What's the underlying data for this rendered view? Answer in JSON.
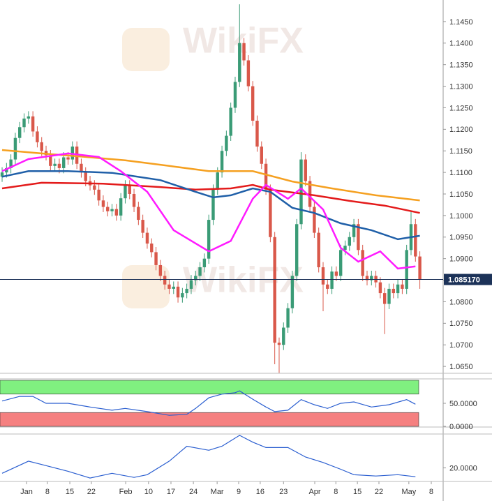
{
  "watermark": "WikiFX",
  "chart_data": [
    {
      "type": "candlestick",
      "up_color": "#3a9b76",
      "down_color": "#d9584a",
      "xlim": [
        -0.48,
        100.3
      ],
      "ylim": [
        1.0634,
        1.15
      ],
      "yticks": [
        {
          "value": 1.065,
          "label": "1.0650"
        },
        {
          "value": 1.07,
          "label": "1.0700"
        },
        {
          "value": 1.075,
          "label": "1.0750"
        },
        {
          "value": 1.08,
          "label": "1.0800"
        },
        {
          "value": 1.085,
          "label": "1.0850"
        },
        {
          "value": 1.09,
          "label": "1.0900"
        },
        {
          "value": 1.095,
          "label": "1.0950"
        },
        {
          "value": 1.1,
          "label": "1.1000"
        },
        {
          "value": 1.105,
          "label": "1.1050"
        },
        {
          "value": 1.11,
          "label": "1.1100"
        },
        {
          "value": 1.115,
          "label": "1.1150"
        },
        {
          "value": 1.12,
          "label": "1.1200"
        },
        {
          "value": 1.125,
          "label": "1.1250"
        },
        {
          "value": 1.13,
          "label": "1.1300"
        },
        {
          "value": 1.135,
          "label": "1.1350"
        },
        {
          "value": 1.14,
          "label": "1.1400"
        },
        {
          "value": 1.145,
          "label": "1.1450"
        }
      ],
      "last_price": {
        "value": 1.08517,
        "label": "1.085170",
        "color": "#1c3258"
      },
      "open": [
        1.109,
        1.11,
        1.111,
        1.113,
        1.118,
        1.1205,
        1.1225,
        1.123,
        1.1195,
        1.117,
        1.115,
        1.114,
        1.1115,
        1.112,
        1.111,
        1.1135,
        1.113,
        1.116,
        1.112,
        1.11,
        1.108,
        1.107,
        1.106,
        1.1035,
        1.102,
        1.101,
        1.1015,
        1.1,
        1.104,
        1.107,
        1.105,
        1.102,
        1.099,
        1.096,
        1.0935,
        1.0915,
        1.0885,
        1.086,
        1.084,
        1.083,
        1.0835,
        1.081,
        1.082,
        1.083,
        1.085,
        1.086,
        1.088,
        1.09,
        1.099,
        1.106,
        1.11,
        1.115,
        1.1185,
        1.125,
        1.131,
        1.14,
        1.136,
        1.13,
        1.122,
        1.116,
        1.112,
        1.106,
        1.095,
        1.0705,
        1.07,
        1.074,
        1.0785,
        1.086,
        1.098,
        1.113,
        1.108,
        1.102,
        1.096,
        1.088,
        1.084,
        1.083,
        1.087,
        1.086,
        1.092,
        1.093,
        1.095,
        1.098,
        1.092,
        1.086,
        1.085,
        1.086,
        1.0845,
        1.082,
        1.0795,
        1.083,
        1.082,
        1.084,
        1.083,
        1.092,
        1.098,
        1.0905
      ],
      "high": [
        1.1112,
        1.1122,
        1.1142,
        1.1192,
        1.1217,
        1.1237,
        1.1242,
        1.1242,
        1.1207,
        1.1182,
        1.1162,
        1.1152,
        1.1132,
        1.1132,
        1.1147,
        1.1147,
        1.1172,
        1.1172,
        1.1132,
        1.1112,
        1.1092,
        1.1082,
        1.1072,
        1.1047,
        1.1032,
        1.1027,
        1.1027,
        1.1052,
        1.1082,
        1.1082,
        1.1062,
        1.1032,
        1.1002,
        1.0972,
        1.0947,
        1.0927,
        1.0897,
        1.0872,
        1.0852,
        1.0847,
        1.0847,
        1.0832,
        1.0842,
        1.0862,
        1.0872,
        1.0892,
        1.0912,
        1.1002,
        1.1072,
        1.1112,
        1.1162,
        1.1197,
        1.1262,
        1.1322,
        1.149,
        1.1412,
        1.1372,
        1.1312,
        1.1232,
        1.1172,
        1.1132,
        1.1072,
        1.0962,
        1.0717,
        1.0752,
        1.0797,
        1.0872,
        1.0992,
        1.1147,
        1.1142,
        1.1092,
        1.1032,
        1.0972,
        1.0892,
        1.0852,
        1.0882,
        1.0882,
        1.0932,
        1.0942,
        1.0962,
        1.0992,
        1.0992,
        1.0932,
        1.0872,
        1.0872,
        1.0872,
        1.0857,
        1.0832,
        1.0842,
        1.0842,
        1.0852,
        1.0852,
        1.0932,
        1.101,
        1.0992,
        1.0917
      ],
      "low": [
        1.1078,
        1.1088,
        1.1098,
        1.1118,
        1.1168,
        1.1193,
        1.1213,
        1.1183,
        1.1158,
        1.1138,
        1.1128,
        1.1103,
        1.1103,
        1.1098,
        1.1098,
        1.1118,
        1.1118,
        1.1108,
        1.1088,
        1.1068,
        1.1058,
        1.1048,
        1.1023,
        1.1008,
        1.0998,
        1.0998,
        1.0988,
        1.0988,
        1.1028,
        1.1038,
        1.1008,
        1.0978,
        1.0948,
        1.0923,
        1.0903,
        1.0873,
        1.0848,
        1.0828,
        1.0818,
        1.0818,
        1.0798,
        1.0798,
        1.0808,
        1.0818,
        1.0838,
        1.0848,
        1.0868,
        1.0888,
        1.0978,
        1.1048,
        1.1088,
        1.1138,
        1.1173,
        1.1238,
        1.1298,
        1.1348,
        1.1288,
        1.1208,
        1.1148,
        1.1108,
        1.1048,
        1.0938,
        1.0655,
        1.0635,
        1.0688,
        1.0728,
        1.0773,
        1.0848,
        1.0968,
        1.1068,
        1.1008,
        1.0948,
        1.0868,
        1.0778,
        1.0818,
        1.0818,
        1.0848,
        1.0848,
        1.0908,
        1.0918,
        1.0938,
        1.0908,
        1.0848,
        1.0838,
        1.0838,
        1.0833,
        1.0808,
        1.0725,
        1.0783,
        1.0808,
        1.0808,
        1.0818,
        1.0818,
        1.0908,
        1.0893,
        1.083
      ],
      "close": [
        1.11,
        1.111,
        1.113,
        1.118,
        1.1205,
        1.1225,
        1.123,
        1.1195,
        1.117,
        1.115,
        1.114,
        1.1115,
        1.112,
        1.111,
        1.1135,
        1.113,
        1.116,
        1.112,
        1.11,
        1.108,
        1.107,
        1.106,
        1.1035,
        1.102,
        1.101,
        1.1015,
        1.1,
        1.104,
        1.107,
        1.105,
        1.102,
        1.099,
        1.096,
        1.0935,
        1.0915,
        1.0885,
        1.086,
        1.084,
        1.083,
        1.0835,
        1.081,
        1.082,
        1.083,
        1.085,
        1.086,
        1.088,
        1.09,
        1.099,
        1.106,
        1.11,
        1.115,
        1.1185,
        1.125,
        1.131,
        1.14,
        1.136,
        1.13,
        1.122,
        1.116,
        1.112,
        1.106,
        1.095,
        1.0705,
        1.07,
        1.074,
        1.0785,
        1.086,
        1.098,
        1.113,
        1.108,
        1.102,
        1.096,
        1.088,
        1.084,
        1.083,
        1.087,
        1.086,
        1.092,
        1.093,
        1.095,
        1.098,
        1.092,
        1.086,
        1.085,
        1.086,
        1.0845,
        1.082,
        1.0795,
        1.083,
        1.082,
        1.084,
        1.083,
        1.092,
        1.098,
        1.0905,
        1.0852
      ],
      "series": [
        {
          "color": "#f5a020",
          "x": [
            0,
            9,
            19,
            28,
            38,
            47,
            57,
            66,
            75,
            85,
            95
          ],
          "values": [
            1.1152,
            1.1144,
            1.1136,
            1.1128,
            1.1115,
            1.1103,
            1.1103,
            1.1079,
            1.1063,
            1.1047,
            1.1035
          ]
        },
        {
          "color": "#e31a1a",
          "x": [
            0,
            9,
            23,
            36,
            44,
            52,
            57,
            61,
            71,
            79,
            87,
            95
          ],
          "values": [
            1.1063,
            1.1076,
            1.1074,
            1.1066,
            1.106,
            1.1063,
            1.1071,
            1.106,
            1.1047,
            1.1034,
            1.1023,
            1.1006
          ]
        },
        {
          "color": "#1f5fa8",
          "x": [
            0,
            6,
            15,
            25,
            36,
            44,
            48,
            52,
            57,
            61,
            66,
            71,
            77,
            84,
            90,
            95
          ],
          "values": [
            1.109,
            1.1103,
            1.1103,
            1.1099,
            1.1082,
            1.1055,
            1.1042,
            1.1047,
            1.1063,
            1.1055,
            1.1018,
            1.1006,
            1.0982,
            1.0966,
            1.0945,
            1.0953
          ]
        },
        {
          "color": "#ff1aff",
          "x": [
            0,
            6,
            15,
            22,
            27,
            33,
            39,
            47,
            52,
            57,
            60,
            65,
            68,
            73,
            77,
            81,
            86,
            90,
            94
          ],
          "values": [
            1.1103,
            1.1131,
            1.1144,
            1.1136,
            1.1103,
            1.1055,
            1.0966,
            1.0917,
            1.0941,
            1.1039,
            1.1071,
            1.1039,
            1.1063,
            1.1014,
            1.0925,
            1.0893,
            1.0917,
            1.0877,
            1.0882
          ]
        }
      ]
    },
    {
      "type": "line",
      "xlim": [
        -0.48,
        100.3
      ],
      "ylim": [
        -1.5,
        103
      ],
      "yticks": [
        {
          "value": 50,
          "label": "50.0000"
        },
        {
          "value": 0,
          "label": "0.0000"
        }
      ],
      "bands": [
        {
          "from": 70,
          "to": 100,
          "color": "#80f080"
        },
        {
          "from": 0,
          "to": 30,
          "color": "#f58080"
        }
      ],
      "series": [
        {
          "color": "#2a5ed0",
          "x": [
            0,
            4,
            7,
            10,
            15,
            20,
            25,
            28,
            33,
            38,
            42,
            44,
            47,
            50,
            53,
            54,
            57,
            60,
            62,
            65,
            68,
            71,
            74,
            77,
            80,
            84,
            88,
            92,
            94
          ],
          "values": [
            55,
            65,
            65,
            50,
            50,
            42,
            35,
            39,
            32,
            24,
            26,
            39,
            62,
            70,
            73,
            77,
            59,
            42,
            32,
            35,
            58,
            47,
            39,
            50,
            53,
            42,
            47,
            58,
            48
          ]
        }
      ]
    },
    {
      "type": "line",
      "xlim": [
        -0.48,
        100.3
      ],
      "ylim": [
        10,
        45
      ],
      "yticks": [
        {
          "value": 20,
          "label": "20.0000"
        }
      ],
      "xticks": [
        {
          "value": 5.56,
          "label": "Jan"
        },
        {
          "value": 10.3,
          "label": "8"
        },
        {
          "value": 15.4,
          "label": "15"
        },
        {
          "value": 20.3,
          "label": "22"
        },
        {
          "value": 28.1,
          "label": "Feb"
        },
        {
          "value": 33.3,
          "label": "10"
        },
        {
          "value": 38.4,
          "label": "17"
        },
        {
          "value": 43.5,
          "label": "24"
        },
        {
          "value": 48.9,
          "label": "Mar"
        },
        {
          "value": 53.8,
          "label": "9"
        },
        {
          "value": 58.7,
          "label": "16"
        },
        {
          "value": 64,
          "label": "23"
        },
        {
          "value": 71.1,
          "label": "Apr"
        },
        {
          "value": 75.9,
          "label": "8"
        },
        {
          "value": 80.8,
          "label": "15"
        },
        {
          "value": 85.7,
          "label": "22"
        },
        {
          "value": 92.5,
          "label": "May"
        },
        {
          "value": 97.6,
          "label": "8"
        }
      ],
      "series": [
        {
          "color": "#2a5ed0",
          "x": [
            0,
            6,
            9,
            15,
            20,
            25,
            30,
            33,
            38,
            42,
            47,
            50,
            54,
            57,
            60,
            65,
            69,
            73,
            77,
            80,
            85,
            90,
            94
          ],
          "values": [
            16,
            25,
            22.5,
            17.5,
            12.5,
            16,
            13,
            15,
            25,
            36,
            33,
            36,
            44,
            39,
            35,
            35,
            28,
            24,
            19,
            15,
            14,
            15,
            13.5
          ]
        }
      ]
    }
  ]
}
